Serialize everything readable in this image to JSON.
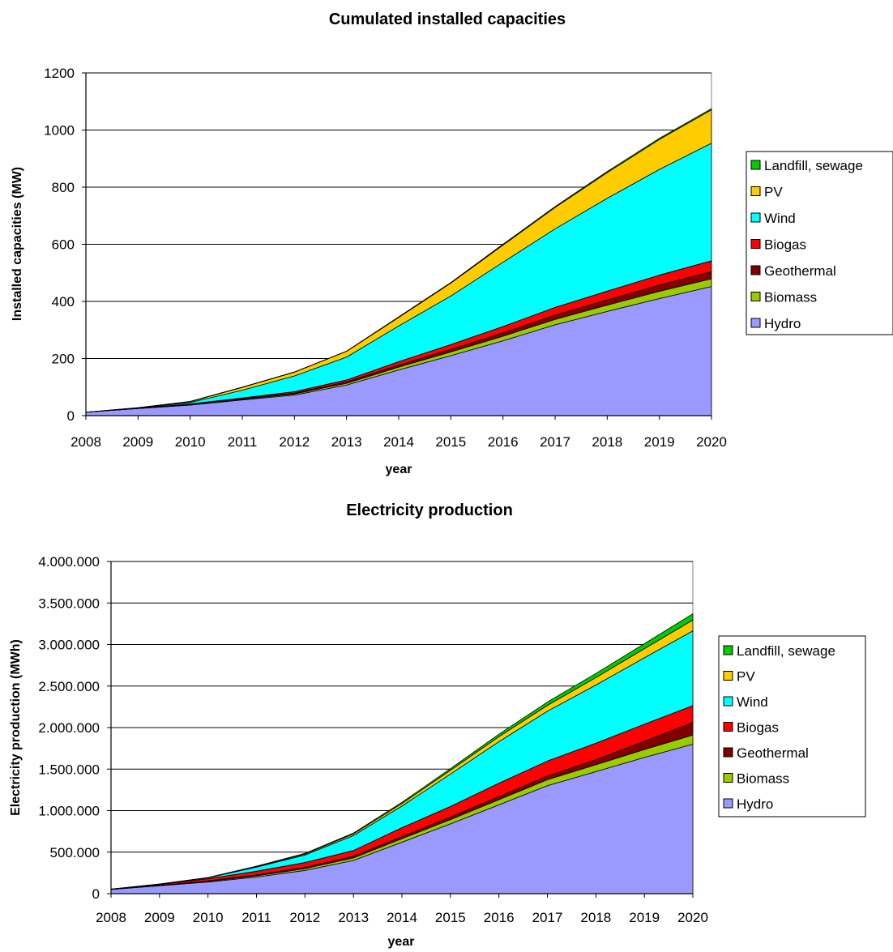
{
  "chart_data": [
    {
      "type": "area",
      "stacked": true,
      "title": "Cumulated installed capacities",
      "xlabel": "year",
      "ylabel": "Installed capacities (MW)",
      "ylim": [
        0,
        1200
      ],
      "yticks": [
        0,
        200,
        400,
        600,
        800,
        1000,
        1200
      ],
      "ytick_labels": [
        "0",
        "200",
        "400",
        "600",
        "800",
        "1000",
        "1200"
      ],
      "grid": "horizontal",
      "legend_position": "right",
      "x": [
        "2008",
        "2009",
        "2010",
        "2011",
        "2012",
        "2013",
        "2014",
        "2015",
        "2016",
        "2017",
        "2018",
        "2019",
        "2020"
      ],
      "legend_order": [
        "Landfill, sewage",
        "PV",
        "Wind",
        "Biogas",
        "Geothermal",
        "Biomass",
        "Hydro"
      ],
      "series": [
        {
          "name": "Hydro",
          "color": "#9999ff",
          "values": [
            12,
            25,
            37,
            55,
            72,
            107,
            160,
            210,
            262,
            318,
            365,
            410,
            452
          ]
        },
        {
          "name": "Biomass",
          "color": "#99cc00",
          "values": [
            0,
            0,
            1,
            2,
            4,
            6,
            10,
            13,
            16,
            19,
            22,
            25,
            27
          ]
        },
        {
          "name": "Geothermal",
          "color": "#800000",
          "values": [
            0,
            0,
            1,
            2,
            3,
            5,
            7,
            9,
            12,
            15,
            18,
            22,
            25
          ]
        },
        {
          "name": "Biogas",
          "color": "#ff0000",
          "values": [
            0,
            1,
            2,
            3,
            5,
            7,
            12,
            17,
            22,
            27,
            31,
            35,
            38
          ]
        },
        {
          "name": "Wind",
          "color": "#00ffff",
          "values": [
            0,
            1,
            5,
            27,
            55,
            80,
            125,
            170,
            225,
            275,
            325,
            370,
            412
          ]
        },
        {
          "name": "PV",
          "color": "#ffcc00",
          "values": [
            0,
            1,
            3,
            10,
            13,
            20,
            30,
            45,
            60,
            75,
            90,
            105,
            117
          ]
        },
        {
          "name": "Landfill, sewage",
          "color": "#00cc00",
          "values": [
            0,
            0,
            1,
            1,
            1,
            1,
            2,
            2,
            3,
            3,
            4,
            4,
            4
          ]
        }
      ]
    },
    {
      "type": "area",
      "stacked": true,
      "title": "Electricity production",
      "xlabel": "year",
      "ylabel": "Electricity production (MWh)",
      "ylim": [
        0,
        4000000
      ],
      "yticks": [
        0,
        500000,
        1000000,
        1500000,
        2000000,
        2500000,
        3000000,
        3500000,
        4000000
      ],
      "ytick_labels": [
        "0",
        "500.000",
        "1.000.000",
        "1.500.000",
        "2.000.000",
        "2.500.000",
        "3.000.000",
        "3.500.000",
        "4.000.000"
      ],
      "grid": "horizontal",
      "legend_position": "right",
      "x": [
        "2008",
        "2009",
        "2010",
        "2011",
        "2012",
        "2013",
        "2014",
        "2015",
        "2016",
        "2017",
        "2018",
        "2019",
        "2020"
      ],
      "legend_order": [
        "Landfill, sewage",
        "PV",
        "Wind",
        "Biogas",
        "Geothermal",
        "Biomass",
        "Hydro"
      ],
      "series": [
        {
          "name": "Hydro",
          "color": "#9999ff",
          "values": [
            50000,
            95000,
            140000,
            200000,
            280000,
            400000,
            620000,
            840000,
            1070000,
            1300000,
            1470000,
            1640000,
            1800000
          ]
        },
        {
          "name": "Biomass",
          "color": "#99cc00",
          "values": [
            1000,
            3000,
            8000,
            15000,
            22000,
            30000,
            42000,
            52000,
            62000,
            72000,
            82000,
            95000,
            110000
          ]
        },
        {
          "name": "Geothermal",
          "color": "#800000",
          "values": [
            1000,
            2000,
            5000,
            10000,
            15000,
            20000,
            25000,
            30000,
            38000,
            45000,
            60000,
            100000,
            150000
          ]
        },
        {
          "name": "Biogas",
          "color": "#ff0000",
          "values": [
            3000,
            10000,
            27000,
            45000,
            58000,
            70000,
            108000,
            128000,
            160000,
            180000,
            200000,
            205000,
            205000
          ]
        },
        {
          "name": "Wind",
          "color": "#00ffff",
          "values": [
            0,
            5000,
            10000,
            50000,
            90000,
            180000,
            260000,
            390000,
            500000,
            600000,
            700000,
            800000,
            900000
          ]
        },
        {
          "name": "PV",
          "color": "#ffcc00",
          "values": [
            0,
            1000,
            3000,
            7000,
            12000,
            20000,
            30000,
            45000,
            60000,
            70000,
            90000,
            110000,
            130000
          ]
        },
        {
          "name": "Landfill, sewage",
          "color": "#00cc00",
          "values": [
            0,
            1000,
            2000,
            5000,
            8000,
            10000,
            15000,
            20000,
            30000,
            40000,
            50000,
            60000,
            75000
          ]
        }
      ]
    }
  ]
}
